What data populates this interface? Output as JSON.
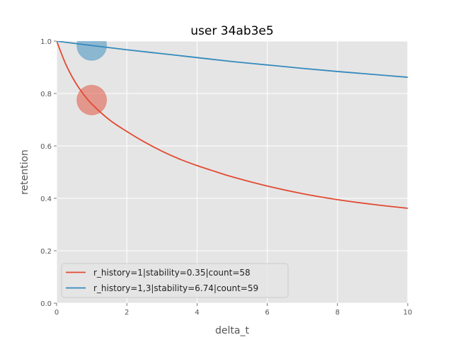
{
  "chart_data": {
    "type": "line",
    "title": "user 34ab3e5",
    "xlabel": "delta_t",
    "ylabel": "retention",
    "xlim": [
      0,
      10
    ],
    "ylim": [
      0,
      1
    ],
    "xticks": [
      "0",
      "2",
      "4",
      "6",
      "8",
      "10"
    ],
    "yticks": [
      "0.0",
      "0.2",
      "0.4",
      "0.6",
      "0.8",
      "1.0"
    ],
    "grid": true,
    "legend_position": "lower-left",
    "series": [
      {
        "name": "r_history=1|stability=0.35|count=58",
        "color": "#E24A33",
        "x": [
          0,
          0.25,
          0.5,
          0.75,
          1,
          1.5,
          2,
          2.5,
          3,
          3.5,
          4,
          4.5,
          5,
          6,
          7,
          8,
          9,
          10
        ],
        "y": [
          1.0,
          0.915,
          0.85,
          0.8,
          0.76,
          0.7,
          0.655,
          0.615,
          0.58,
          0.55,
          0.525,
          0.503,
          0.482,
          0.447,
          0.418,
          0.395,
          0.377,
          0.362
        ],
        "point": {
          "x": 1,
          "y": 0.775
        }
      },
      {
        "name": "r_history=1,3|stability=6.74|count=59",
        "color": "#348ABD",
        "x": [
          0,
          1,
          2,
          3,
          4,
          5,
          6,
          7,
          8,
          9,
          10
        ],
        "y": [
          1.0,
          0.983,
          0.967,
          0.952,
          0.937,
          0.922,
          0.909,
          0.896,
          0.884,
          0.873,
          0.862
        ],
        "point": {
          "x": 1,
          "y": 0.983
        }
      }
    ]
  }
}
